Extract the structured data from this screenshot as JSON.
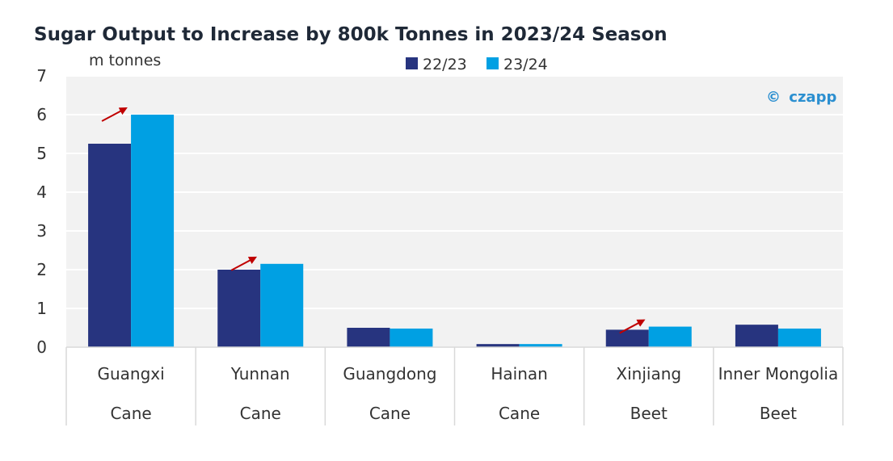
{
  "chart_data": {
    "type": "bar",
    "title": "Sugar Output to Increase by 800k Tonnes in 2023/24 Season",
    "ylabel": "m tonnes",
    "xlabel": "",
    "ylim": [
      0,
      7
    ],
    "yticks": [
      "0",
      "1",
      "2",
      "3",
      "4",
      "5",
      "6",
      "7"
    ],
    "grid": true,
    "legend_position": "top-center",
    "categories": [
      "Guangxi",
      "Yunnan",
      "Guangdong",
      "Hainan",
      "Xinjiang",
      "Inner Mongolia"
    ],
    "sub_categories": [
      "Cane",
      "Cane",
      "Cane",
      "Cane",
      "Beet",
      "Beet"
    ],
    "series": [
      {
        "name": "22/23",
        "color": "#27347f",
        "values": [
          5.25,
          2.0,
          0.5,
          0.08,
          0.45,
          0.58
        ]
      },
      {
        "name": "23/24",
        "color": "#00a0e3",
        "values": [
          6.0,
          2.15,
          0.48,
          0.08,
          0.53,
          0.48
        ]
      }
    ],
    "increase_arrows": [
      "Guangxi",
      "Yunnan",
      "Xinjiang"
    ],
    "arrow_color": "#c00000",
    "plot_background": "#f2f2f2",
    "gridline_color": "#ffffff"
  },
  "watermark": {
    "symbol": "©",
    "text": "czapp"
  }
}
